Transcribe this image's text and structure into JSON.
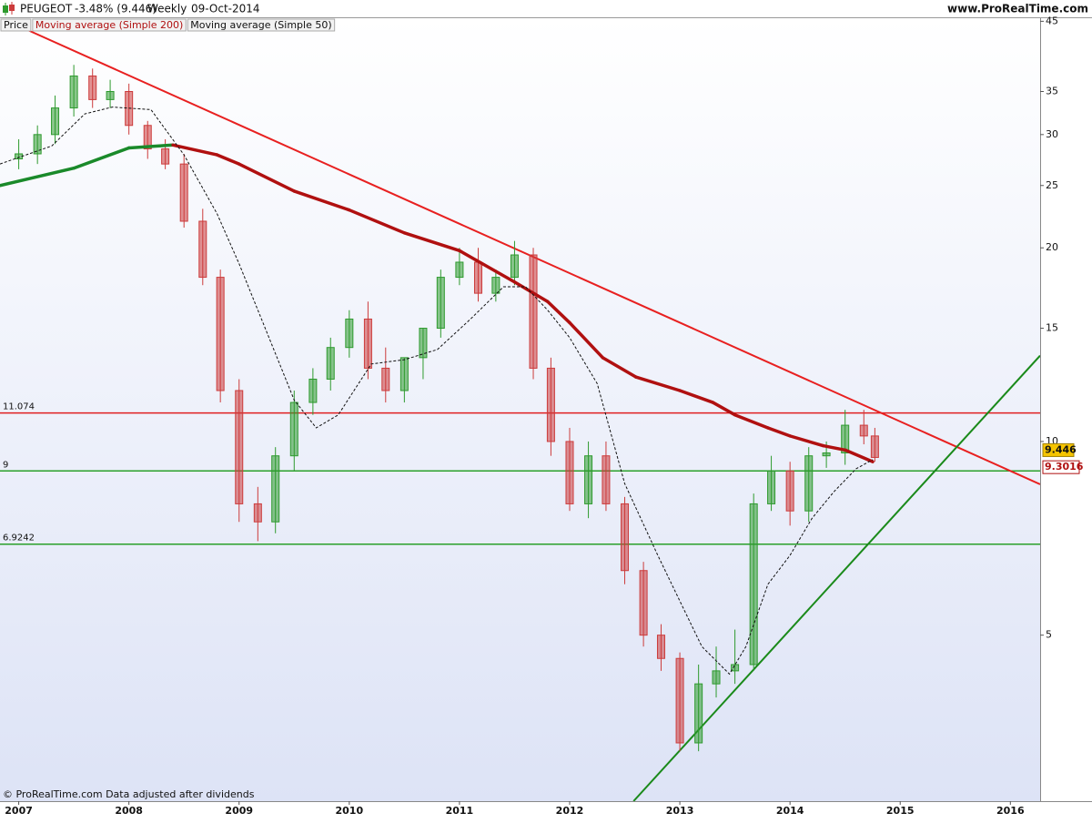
{
  "header": {
    "symbol": "PEUGEOT",
    "change": "-3.48% (9.446)",
    "period": "Weekly",
    "date": "09-Oct-2014",
    "site": "www.ProRealTime.com"
  },
  "footer": "© ProRealTime.com  Data adjusted after dividends",
  "chart_data": {
    "type": "candlestick",
    "log_scale": true,
    "xlim": [
      2006.83,
      2016.27
    ],
    "ylim": [
      2.76,
      45.5
    ],
    "xticks": [
      2007,
      2008,
      2009,
      2010,
      2011,
      2012,
      2013,
      2014,
      2015,
      2016
    ],
    "yticks": [
      5,
      10,
      15,
      20,
      25,
      30,
      35,
      45
    ],
    "candles": {
      "name": "Price",
      "up_color": "#2e9a2e",
      "down_color": "#cc3b3b",
      "x": [
        2007.0,
        2007.17,
        2007.33,
        2007.5,
        2007.67,
        2007.83,
        2008.0,
        2008.17,
        2008.33,
        2008.5,
        2008.67,
        2008.83,
        2009.0,
        2009.17,
        2009.33,
        2009.5,
        2009.67,
        2009.83,
        2010.0,
        2010.17,
        2010.33,
        2010.5,
        2010.67,
        2010.83,
        2011.0,
        2011.17,
        2011.33,
        2011.5,
        2011.67,
        2011.83,
        2012.0,
        2012.17,
        2012.33,
        2012.5,
        2012.67,
        2012.83,
        2013.0,
        2013.17,
        2013.33,
        2013.5,
        2013.67,
        2013.83,
        2014.0,
        2014.17,
        2014.33,
        2014.5,
        2014.67,
        2014.77
      ],
      "open": [
        27.5,
        28,
        30,
        33,
        37,
        34,
        35,
        31,
        28.5,
        27,
        22,
        18,
        12,
        8,
        7.5,
        9.5,
        11.5,
        12.5,
        14,
        15.5,
        13,
        12,
        13.5,
        15,
        18,
        19,
        17,
        18,
        19.5,
        13,
        10,
        8,
        9.5,
        8,
        6.3,
        5,
        4.6,
        3.4,
        4.2,
        4.4,
        4.5,
        8,
        9,
        7.8,
        9.5,
        9.6,
        10.6,
        10.2
      ],
      "high": [
        29.5,
        31,
        34.5,
        38.5,
        38,
        36.5,
        36,
        31.5,
        29.5,
        28,
        23,
        18.5,
        12.5,
        8.5,
        9.8,
        12,
        13,
        14.5,
        16,
        16.5,
        14,
        13.5,
        15,
        18.5,
        20,
        20,
        18.5,
        20.5,
        20,
        13.5,
        10.5,
        10,
        10,
        8.2,
        6.5,
        5.2,
        4.7,
        4.5,
        4.8,
        5.1,
        8.3,
        9.5,
        9.3,
        9.8,
        10,
        11.2,
        11.2,
        10.5
      ],
      "low": [
        26.5,
        27,
        29,
        32,
        33,
        33,
        30,
        27.5,
        26.5,
        21.5,
        17.5,
        11.5,
        7.5,
        7,
        7.2,
        9,
        11,
        12,
        13.5,
        12.5,
        11.5,
        11.5,
        12.5,
        14.5,
        17.5,
        16.5,
        16.5,
        17.5,
        12.5,
        9.5,
        7.8,
        7.6,
        7.8,
        6,
        4.8,
        4.4,
        3.3,
        3.3,
        4,
        4.2,
        4.4,
        7.8,
        7.4,
        7.5,
        9.1,
        9.2,
        9.9,
        9.3
      ],
      "close": [
        28,
        30,
        33,
        37,
        34,
        35,
        31,
        28.5,
        27,
        22,
        18,
        12,
        8,
        7.5,
        9.5,
        11.5,
        12.5,
        14,
        15.5,
        13,
        12,
        13.5,
        15,
        18,
        19,
        17,
        18,
        19.5,
        13,
        10,
        8,
        9.5,
        8,
        6.3,
        5,
        4.6,
        3.4,
        4.2,
        4.4,
        4.5,
        8,
        9,
        7.8,
        9.5,
        9.6,
        10.6,
        10.2,
        9.446
      ]
    },
    "lines": [
      {
        "name": "Moving average (Simple 200)",
        "color": "#b01010",
        "rising_color": "#1a8a2a",
        "width": 3.5,
        "dashed": false,
        "x": [
          2006.83,
          2007.5,
          2008.0,
          2008.4,
          2008.8,
          2009.0,
          2009.5,
          2010.0,
          2010.5,
          2011.0,
          2011.5,
          2011.8,
          2012.0,
          2012.3,
          2012.6,
          2013.0,
          2013.3,
          2013.5,
          2013.8,
          2014.0,
          2014.3,
          2014.5,
          2014.75
        ],
        "values": [
          25,
          26.6,
          28.6,
          28.9,
          27.9,
          27,
          24.5,
          22.9,
          21.1,
          19.8,
          17.7,
          16.5,
          15.3,
          13.5,
          12.6,
          12,
          11.5,
          11.0,
          10.5,
          10.2,
          9.85,
          9.7,
          9.3016
        ]
      },
      {
        "name": "Moving average (Simple 50)",
        "color": "#111111",
        "width": 1,
        "dashed": true,
        "x": [
          2006.83,
          2007.3,
          2007.6,
          2007.85,
          2008.2,
          2008.5,
          2008.8,
          2009.0,
          2009.3,
          2009.5,
          2009.7,
          2009.9,
          2010.2,
          2010.5,
          2010.8,
          2011.1,
          2011.4,
          2011.6,
          2011.8,
          2012.0,
          2012.25,
          2012.5,
          2012.8,
          2013.0,
          2013.2,
          2013.45,
          2013.6,
          2013.8,
          2014.0,
          2014.2,
          2014.4,
          2014.6,
          2014.75
        ],
        "values": [
          27,
          28.8,
          32.3,
          33.1,
          32.8,
          27.9,
          22.6,
          18.9,
          14.1,
          11.6,
          10.5,
          11.0,
          13.2,
          13.4,
          13.9,
          15.5,
          17.4,
          17.4,
          16.0,
          14.5,
          12.3,
          8.6,
          6.65,
          5.65,
          4.8,
          4.35,
          4.8,
          6.0,
          6.65,
          7.6,
          8.36,
          9.07,
          9.37
        ]
      }
    ],
    "levels": [
      {
        "value": 11.074,
        "color": "#e02020"
      },
      {
        "value": 9,
        "color": "#2aa02a"
      },
      {
        "value": 6.9242,
        "color": "#2aa02a"
      }
    ],
    "trendlines": [
      {
        "color": "#e82020",
        "x": [
          2007.07,
          2016.27
        ],
        "values": [
          43.7,
          8.58
        ]
      },
      {
        "color": "#1a8a1a",
        "x": [
          2012.58,
          2016.27
        ],
        "values": [
          2.76,
          13.6
        ]
      }
    ],
    "last_label_color": "#f5c400"
  }
}
